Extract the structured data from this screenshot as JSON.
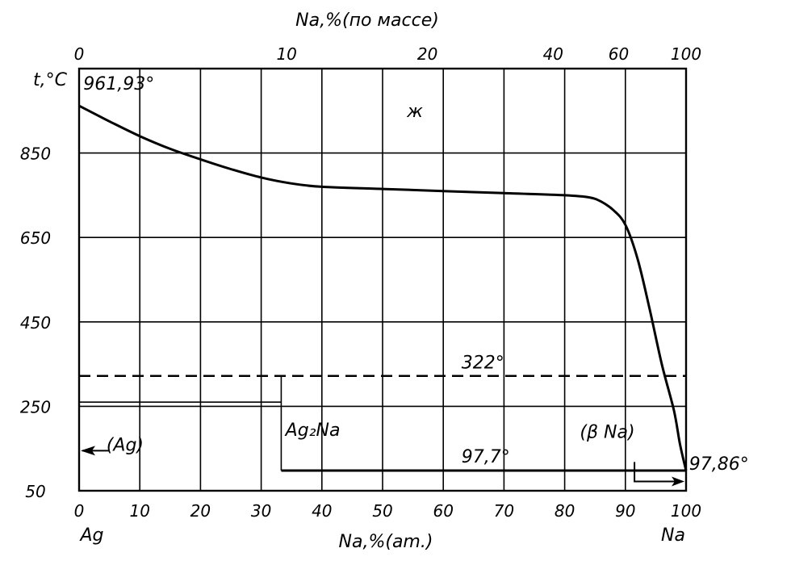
{
  "chart_data": {
    "type": "line",
    "top_axis_label": "Na,%(по массе)",
    "top_ticks": [
      {
        "label": "0",
        "at": 0
      },
      {
        "label": "10",
        "at": 34.2
      },
      {
        "label": "20",
        "at": 57.4
      },
      {
        "label": "40",
        "at": 78.1
      },
      {
        "label": "60",
        "at": 88.9
      },
      {
        "label": "100",
        "at": 100
      }
    ],
    "xlabel": "Na,%(am.)",
    "xlim": [
      0,
      100
    ],
    "x_ticks": [
      0,
      10,
      20,
      30,
      40,
      50,
      60,
      70,
      80,
      90,
      100
    ],
    "ylabel": "t,°C",
    "ylim": [
      50,
      1050
    ],
    "y_ticks": [
      50,
      250,
      450,
      650,
      850
    ],
    "grid": true,
    "liquidus": {
      "x": [
        0,
        5,
        10,
        15,
        20,
        25,
        30,
        35,
        40,
        50,
        60,
        70,
        80,
        84,
        86,
        88,
        90,
        92,
        94,
        96,
        98,
        99,
        100
      ],
      "y": [
        961.93,
        925,
        890,
        860,
        835,
        812,
        792,
        778,
        770,
        765,
        760,
        755,
        750,
        745,
        735,
        715,
        680,
        600,
        480,
        350,
        240,
        160,
        97.86
      ]
    },
    "lines": [
      {
        "kind": "dashed",
        "x": [
          0,
          100
        ],
        "y": [
          322,
          322
        ]
      },
      {
        "kind": "solid",
        "x": [
          0,
          33.3
        ],
        "y": [
          260,
          260
        ]
      },
      {
        "kind": "solid",
        "x": [
          33.3,
          33.3
        ],
        "y": [
          97.7,
          322
        ]
      },
      {
        "kind": "solid_heavy",
        "x": [
          33.3,
          100
        ],
        "y": [
          97.7,
          97.7
        ]
      }
    ],
    "annotations": [
      {
        "id": "ag-melt",
        "text": "961,93°",
        "x": 0.7,
        "y": 1000
      },
      {
        "id": "liquid",
        "text": "ж",
        "x": 54,
        "y": 935
      },
      {
        "id": "eutectoid",
        "text": "322°",
        "x": 63,
        "y": 340
      },
      {
        "id": "ag-phase",
        "text": "(Ag)",
        "x": 4.5,
        "y": 145
      },
      {
        "id": "ag2na",
        "text": "Ag₂Na",
        "x": 34,
        "y": 180
      },
      {
        "id": "beta-na",
        "text": "(β Na)",
        "x": 82.5,
        "y": 175
      },
      {
        "id": "eutectic",
        "text": "97,7°",
        "x": 63,
        "y": 117
      },
      {
        "id": "na-melt",
        "text": "97,86°",
        "x": 100.5,
        "y": 100
      }
    ],
    "end_labels": {
      "left": "Ag",
      "right": "Na"
    }
  }
}
